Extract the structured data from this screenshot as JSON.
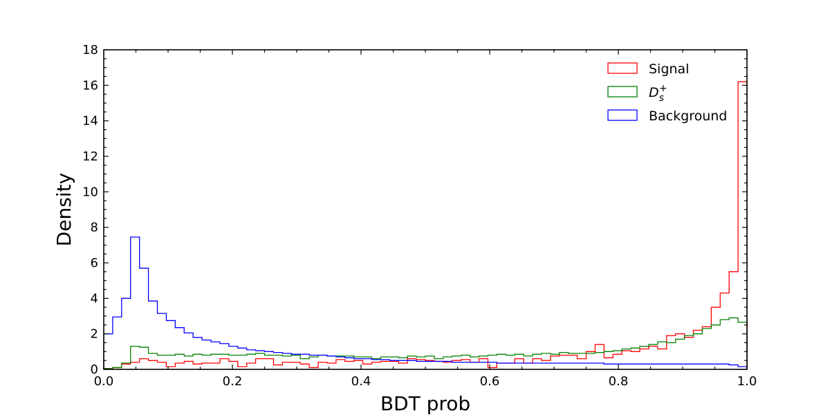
{
  "chart_data": {
    "type": "histogram",
    "title": "",
    "xlabel": "BDT prob",
    "ylabel": "Density",
    "xlim": [
      0.0,
      1.0
    ],
    "ylim": [
      0,
      18
    ],
    "xticks": [
      "0.0",
      "0.2",
      "0.4",
      "0.6",
      "0.8",
      "1.0"
    ],
    "yticks": [
      "0",
      "2",
      "4",
      "6",
      "8",
      "10",
      "12",
      "14",
      "16",
      "18"
    ],
    "grid": false,
    "legend_position": "top-right",
    "bin_width": 0.014285714,
    "series": [
      {
        "name": "Signal",
        "color": "#ff0000",
        "values": [
          0.05,
          0.1,
          0.3,
          0.4,
          0.6,
          0.5,
          0.4,
          0.15,
          0.35,
          0.45,
          0.3,
          0.35,
          0.35,
          0.6,
          0.45,
          0.15,
          0.35,
          0.6,
          0.6,
          0.25,
          0.4,
          0.4,
          0.3,
          0.1,
          0.4,
          0.35,
          0.55,
          0.45,
          0.5,
          0.3,
          0.4,
          0.45,
          0.45,
          0.35,
          0.6,
          0.55,
          0.5,
          0.45,
          0.4,
          0.5,
          0.55,
          0.4,
          0.6,
          0.1,
          0.35,
          0.35,
          0.6,
          0.35,
          0.6,
          0.5,
          0.75,
          0.8,
          0.8,
          0.6,
          1.0,
          1.4,
          0.65,
          0.85,
          1.05,
          1.0,
          1.15,
          1.3,
          1.15,
          1.9,
          2.0,
          1.8,
          2.2,
          2.4,
          3.5,
          4.3,
          5.5,
          16.2
        ]
      },
      {
        "name": "D_s^+",
        "color": "#008000",
        "values": [
          0.05,
          0.1,
          0.35,
          1.3,
          1.25,
          0.9,
          0.8,
          0.8,
          0.85,
          0.75,
          0.85,
          0.8,
          0.85,
          0.85,
          0.8,
          0.8,
          0.85,
          0.9,
          0.8,
          0.8,
          0.75,
          0.8,
          0.6,
          0.7,
          0.8,
          0.75,
          0.75,
          0.75,
          0.7,
          0.7,
          0.6,
          0.7,
          0.7,
          0.65,
          0.75,
          0.7,
          0.75,
          0.6,
          0.7,
          0.75,
          0.8,
          0.7,
          0.75,
          0.8,
          0.85,
          0.8,
          0.85,
          0.75,
          0.85,
          0.9,
          0.85,
          0.95,
          0.9,
          0.9,
          0.9,
          0.95,
          1.0,
          1.05,
          1.15,
          1.2,
          1.3,
          1.4,
          1.55,
          1.5,
          1.7,
          1.9,
          2.0,
          2.3,
          2.5,
          2.8,
          2.9,
          2.65
        ]
      },
      {
        "name": "Background",
        "color": "#0000ff",
        "values": [
          2.0,
          2.95,
          4.0,
          7.45,
          5.7,
          3.85,
          3.15,
          2.75,
          2.35,
          2.05,
          1.8,
          1.65,
          1.55,
          1.45,
          1.3,
          1.2,
          1.1,
          1.05,
          1.0,
          0.95,
          0.9,
          0.85,
          0.85,
          0.8,
          0.8,
          0.75,
          0.7,
          0.65,
          0.6,
          0.6,
          0.55,
          0.55,
          0.5,
          0.5,
          0.5,
          0.45,
          0.45,
          0.45,
          0.45,
          0.4,
          0.4,
          0.4,
          0.4,
          0.4,
          0.35,
          0.35,
          0.35,
          0.35,
          0.35,
          0.35,
          0.35,
          0.35,
          0.35,
          0.35,
          0.35,
          0.35,
          0.3,
          0.3,
          0.3,
          0.3,
          0.3,
          0.3,
          0.3,
          0.3,
          0.3,
          0.3,
          0.3,
          0.3,
          0.3,
          0.3,
          0.25,
          0.15
        ]
      }
    ]
  }
}
